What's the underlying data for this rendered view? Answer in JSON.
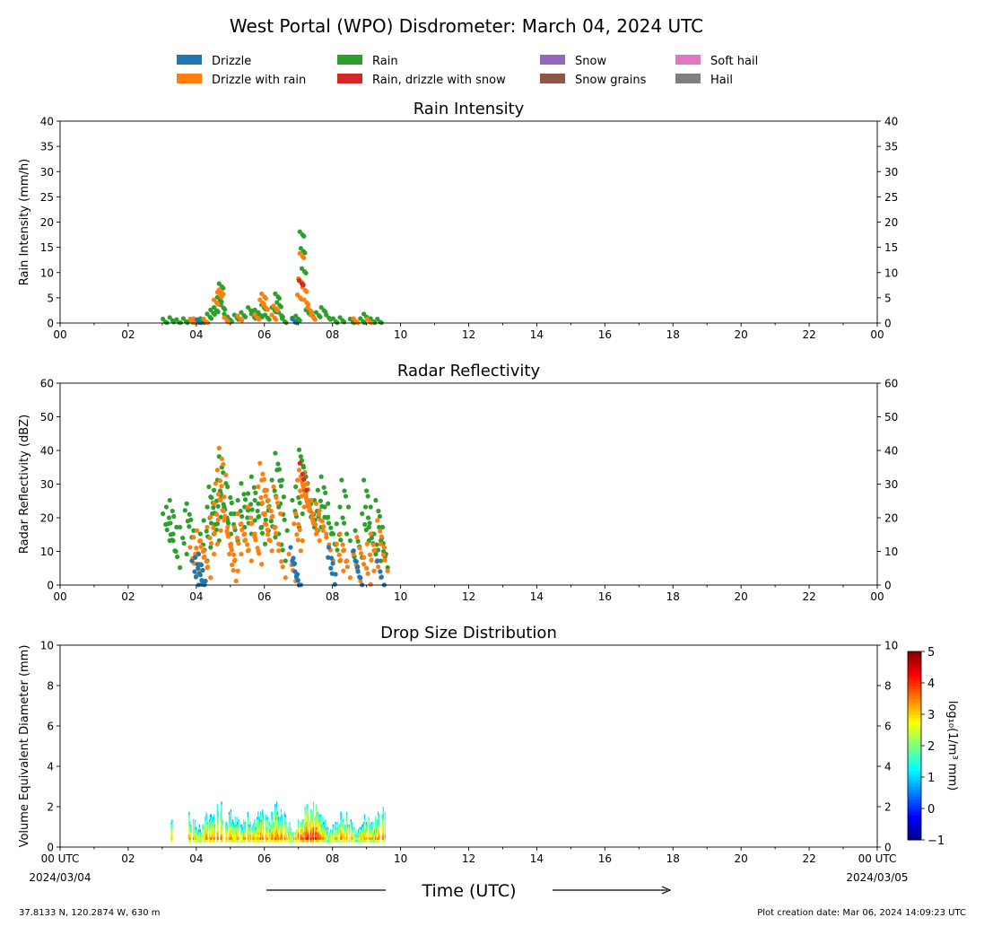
{
  "figure": {
    "title": "West Portal (WPO) Disdrometer: March 04, 2024 UTC",
    "xlabel": "Time (UTC)",
    "left_note": "37.8133 N, 120.2874 W, 630 m",
    "right_note": "Plot creation date: Mar 06, 2024 14:09:23 UTC",
    "start_date": "2024/03/04",
    "end_date": "2024/03/05",
    "first_tick_label": "00 UTC",
    "last_tick_label": "00 UTC"
  },
  "legend": [
    {
      "name": "Drizzle",
      "color": "#1f77b4"
    },
    {
      "name": "Drizzle with rain",
      "color": "#ff7f0e"
    },
    {
      "name": "Rain",
      "color": "#2ca02c"
    },
    {
      "name": "Rain, drizzle with snow",
      "color": "#d62728"
    },
    {
      "name": "Snow",
      "color": "#9467bd"
    },
    {
      "name": "Snow grains",
      "color": "#8c564b"
    },
    {
      "name": "Soft hail",
      "color": "#e377c2"
    },
    {
      "name": "Hail",
      "color": "#7f7f7f"
    }
  ],
  "chart_data": [
    {
      "type": "scatter",
      "title": "Rain Intensity",
      "ylabel": "Rain Intensity (mm/h)",
      "xlim": [
        0,
        24
      ],
      "ylim": [
        0,
        40
      ],
      "yticks": [
        0,
        5,
        10,
        15,
        20,
        25,
        30,
        35,
        40
      ],
      "xtick_labels": [
        "00",
        "02",
        "04",
        "06",
        "08",
        "10",
        "12",
        "14",
        "16",
        "18",
        "20",
        "22",
        "00"
      ],
      "series": [
        {
          "name": "Rain",
          "color": "#2ca02c",
          "points": [
            [
              3.1,
              0.2
            ],
            [
              3.3,
              0.5
            ],
            [
              3.5,
              0.1
            ],
            [
              3.7,
              0.3
            ],
            [
              3.9,
              0.1
            ],
            [
              4.2,
              0.3
            ],
            [
              4.4,
              1.2
            ],
            [
              4.5,
              2.0
            ],
            [
              4.6,
              2.5
            ],
            [
              4.7,
              4.5
            ],
            [
              4.75,
              7.2
            ],
            [
              4.8,
              3.0
            ],
            [
              4.9,
              1.2
            ],
            [
              5.0,
              0.6
            ],
            [
              5.2,
              1.0
            ],
            [
              5.4,
              1.5
            ],
            [
              5.6,
              2.5
            ],
            [
              5.7,
              1.2
            ],
            [
              5.8,
              2.0
            ],
            [
              5.9,
              1.5
            ],
            [
              6.0,
              3.0
            ],
            [
              6.1,
              1.0
            ],
            [
              6.3,
              2.5
            ],
            [
              6.4,
              5.2
            ],
            [
              6.45,
              3.5
            ],
            [
              6.5,
              1.5
            ],
            [
              6.6,
              0.3
            ],
            [
              6.9,
              0.4
            ],
            [
              7.0,
              0.8
            ],
            [
              7.1,
              8.0
            ],
            [
              7.12,
              17.5
            ],
            [
              7.15,
              14.2
            ],
            [
              7.18,
              10.2
            ],
            [
              7.3,
              2.0
            ],
            [
              7.4,
              1.5
            ],
            [
              7.6,
              1.5
            ],
            [
              7.75,
              2.5
            ],
            [
              7.9,
              1.0
            ],
            [
              8.1,
              0.3
            ],
            [
              8.3,
              0.5
            ],
            [
              8.6,
              0.2
            ],
            [
              8.9,
              0.3
            ],
            [
              9.0,
              1.2
            ],
            [
              9.2,
              0.3
            ],
            [
              9.4,
              0.2
            ]
          ]
        },
        {
          "name": "Drizzle with rain",
          "color": "#ff7f0e",
          "points": [
            [
              3.9,
              0.2
            ],
            [
              4.0,
              0.3
            ],
            [
              4.3,
              0.2
            ],
            [
              4.6,
              4.0
            ],
            [
              4.7,
              5.5
            ],
            [
              4.75,
              6.0
            ],
            [
              4.9,
              0.5
            ],
            [
              5.3,
              0.8
            ],
            [
              5.8,
              1.0
            ],
            [
              5.95,
              4.0
            ],
            [
              6.0,
              5.2
            ],
            [
              6.05,
              3.0
            ],
            [
              6.3,
              1.0
            ],
            [
              6.35,
              2.8
            ],
            [
              7.05,
              5.0
            ],
            [
              7.08,
              8.2
            ],
            [
              7.12,
              13.2
            ],
            [
              7.2,
              6.5
            ],
            [
              7.25,
              4.0
            ],
            [
              7.35,
              2.5
            ],
            [
              7.45,
              1.0
            ],
            [
              8.7,
              0.3
            ],
            [
              9.1,
              0.2
            ]
          ]
        },
        {
          "name": "Rain, drizzle with snow",
          "color": "#d62728",
          "points": [
            [
              7.1,
              7.8
            ]
          ]
        },
        {
          "name": "Drizzle",
          "color": "#1f77b4",
          "points": [
            [
              4.1,
              0.1
            ],
            [
              6.9,
              0.2
            ]
          ]
        }
      ]
    },
    {
      "type": "scatter",
      "title": "Radar Reflectivity",
      "ylabel": "Radar Reflectivity (dBZ)",
      "xlim": [
        0,
        24
      ],
      "ylim": [
        0,
        60
      ],
      "yticks": [
        0,
        10,
        20,
        30,
        40,
        50,
        60
      ],
      "xtick_labels": [
        "00",
        "02",
        "04",
        "06",
        "08",
        "10",
        "12",
        "14",
        "16",
        "18",
        "20",
        "22",
        "00"
      ],
      "series": [
        {
          "name": "Rain",
          "color": "#2ca02c",
          "points": [
            [
              3.1,
              18
            ],
            [
              3.2,
              20
            ],
            [
              3.25,
              15
            ],
            [
              3.3,
              22
            ],
            [
              3.4,
              10
            ],
            [
              3.6,
              14
            ],
            [
              3.75,
              19
            ],
            [
              3.8,
              21
            ],
            [
              4.2,
              12
            ],
            [
              4.3,
              16
            ],
            [
              4.4,
              20
            ],
            [
              4.45,
              26
            ],
            [
              4.5,
              23
            ],
            [
              4.55,
              18
            ],
            [
              4.6,
              25
            ],
            [
              4.7,
              28
            ],
            [
              4.75,
              35
            ],
            [
              4.8,
              24
            ],
            [
              4.9,
              20
            ],
            [
              5.0,
              26
            ],
            [
              5.1,
              18
            ],
            [
              5.3,
              22
            ],
            [
              5.4,
              27
            ],
            [
              5.5,
              20
            ],
            [
              5.6,
              24
            ],
            [
              5.7,
              29
            ],
            [
              5.8,
              22
            ],
            [
              5.9,
              17
            ],
            [
              6.0,
              21
            ],
            [
              6.1,
              25
            ],
            [
              6.2,
              19
            ],
            [
              6.3,
              28
            ],
            [
              6.4,
              36
            ],
            [
              6.45,
              31
            ],
            [
              6.5,
              12
            ],
            [
              6.55,
              21
            ],
            [
              6.9,
              22
            ],
            [
              7.0,
              26
            ],
            [
              7.1,
              37
            ],
            [
              7.15,
              35
            ],
            [
              7.25,
              25
            ],
            [
              7.35,
              22
            ],
            [
              7.45,
              21
            ],
            [
              7.55,
              22
            ],
            [
              7.65,
              25
            ],
            [
              7.75,
              29
            ],
            [
              7.85,
              20
            ],
            [
              7.95,
              17
            ],
            [
              8.1,
              12
            ],
            [
              8.2,
              15
            ],
            [
              8.3,
              20
            ],
            [
              8.35,
              28
            ],
            [
              8.6,
              10
            ],
            [
              8.75,
              13
            ],
            [
              8.95,
              18
            ],
            [
              9.0,
              28
            ],
            [
              9.05,
              20
            ],
            [
              9.15,
              14
            ],
            [
              9.3,
              12
            ],
            [
              9.35,
              22
            ],
            [
              9.45,
              14
            ],
            [
              9.5,
              10
            ]
          ]
        },
        {
          "name": "Drizzle with rain",
          "color": "#ff7f0e",
          "points": [
            [
              3.9,
              8
            ],
            [
              4.0,
              11
            ],
            [
              4.05,
              6
            ],
            [
              4.1,
              13
            ],
            [
              4.2,
              10
            ],
            [
              4.3,
              7
            ],
            [
              4.4,
              14
            ],
            [
              4.5,
              17
            ],
            [
              4.6,
              21
            ],
            [
              4.65,
              27
            ],
            [
              4.7,
              31
            ],
            [
              4.75,
              37.5
            ],
            [
              4.8,
              22
            ],
            [
              4.9,
              16
            ],
            [
              5.0,
              12
            ],
            [
              5.05,
              6
            ],
            [
              5.1,
              9
            ],
            [
              5.2,
              14
            ],
            [
              5.3,
              18
            ],
            [
              5.4,
              15
            ],
            [
              5.5,
              12
            ],
            [
              5.6,
              20
            ],
            [
              5.7,
              15
            ],
            [
              5.8,
              11
            ],
            [
              5.9,
              26
            ],
            [
              5.95,
              33
            ],
            [
              6.0,
              28
            ],
            [
              6.05,
              18
            ],
            [
              6.1,
              15
            ],
            [
              6.2,
              22
            ],
            [
              6.3,
              17
            ],
            [
              6.35,
              26
            ],
            [
              6.5,
              7
            ],
            [
              6.8,
              6
            ],
            [
              6.95,
              15
            ],
            [
              7.0,
              18
            ],
            [
              7.05,
              28
            ],
            [
              7.1,
              31
            ],
            [
              7.15,
              29
            ],
            [
              7.2,
              27
            ],
            [
              7.25,
              30
            ],
            [
              7.3,
              24
            ],
            [
              7.4,
              20
            ],
            [
              7.5,
              18
            ],
            [
              7.6,
              21
            ],
            [
              7.7,
              19
            ],
            [
              7.9,
              12
            ],
            [
              8.2,
              9
            ],
            [
              8.3,
              12
            ],
            [
              8.4,
              7
            ],
            [
              8.7,
              6
            ],
            [
              8.8,
              11
            ],
            [
              9.0,
              5
            ],
            [
              9.1,
              9
            ],
            [
              9.2,
              12
            ],
            [
              9.3,
              7
            ],
            [
              9.4,
              16
            ],
            [
              9.5,
              9
            ]
          ]
        },
        {
          "name": "Drizzle",
          "color": "#1f77b4",
          "points": [
            [
              3.95,
              4
            ],
            [
              4.05,
              5
            ],
            [
              4.12,
              3
            ],
            [
              4.15,
              6
            ],
            [
              6.85,
              8
            ],
            [
              6.9,
              4
            ],
            [
              6.95,
              3
            ],
            [
              7.95,
              5
            ],
            [
              7.97,
              8
            ],
            [
              8.7,
              7
            ],
            [
              8.75,
              4
            ],
            [
              9.4,
              4
            ]
          ]
        },
        {
          "name": "Rain, drizzle with snow",
          "color": "#d62728",
          "points": [
            [
              7.12,
              33
            ]
          ]
        }
      ]
    },
    {
      "type": "heatmap",
      "title": "Drop Size Distribution",
      "ylabel": "Volume Equivalent Diameter (mm)",
      "colorbar_label": "log₁₀(1/m³ mm)",
      "colorbar_range": [
        -1,
        5
      ],
      "colorbar_ticks": [
        -1,
        0,
        1,
        2,
        3,
        4,
        5
      ],
      "xlim": [
        0,
        24
      ],
      "ylim": [
        0,
        10
      ],
      "yticks": [
        0,
        2,
        4,
        6,
        8,
        10
      ],
      "xtick_labels": [
        "00",
        "02",
        "04",
        "06",
        "08",
        "10",
        "12",
        "14",
        "16",
        "18",
        "20",
        "22",
        "00"
      ],
      "active_hours": [
        [
          3.25,
          3.3
        ],
        [
          3.75,
          9.55
        ]
      ],
      "max_diameter_peaks": [
        [
          3.28,
          1.5
        ],
        [
          3.8,
          1.7
        ],
        [
          4.4,
          2.1
        ],
        [
          4.7,
          2.3
        ],
        [
          5.0,
          1.9
        ],
        [
          5.5,
          1.8
        ],
        [
          5.9,
          1.9
        ],
        [
          6.4,
          2.5
        ],
        [
          7.2,
          2.2
        ],
        [
          7.5,
          2.3
        ],
        [
          8.3,
          1.8
        ],
        [
          9.0,
          1.6
        ],
        [
          9.45,
          2.0
        ]
      ]
    }
  ]
}
